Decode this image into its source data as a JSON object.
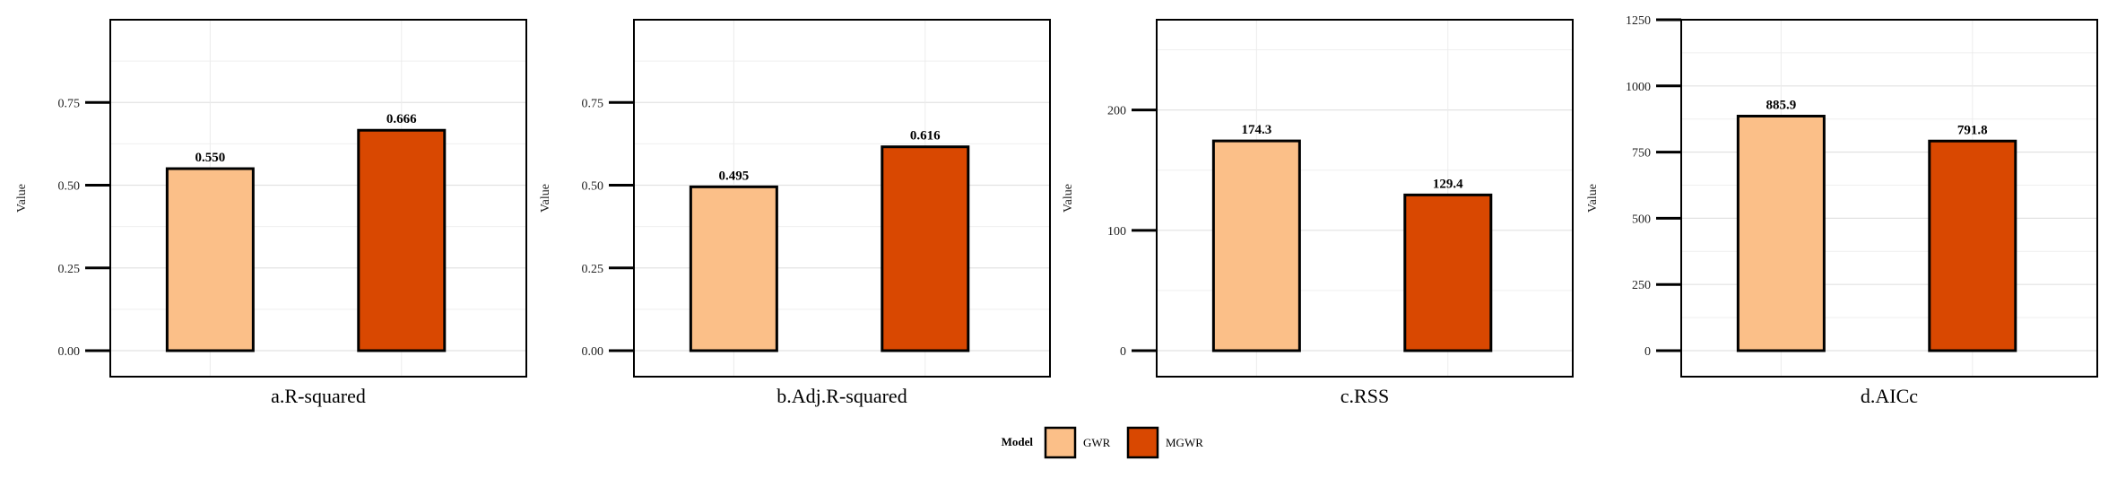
{
  "chart_data": [
    {
      "type": "bar",
      "title": "a.R-squared",
      "ylabel": "Value",
      "categories": [
        "GWR",
        "MGWR"
      ],
      "values": [
        0.55,
        0.666
      ],
      "value_labels": [
        "0.550",
        "0.666"
      ],
      "ylim": [
        0,
        1.0
      ],
      "yticks": [
        0.0,
        0.25,
        0.5,
        0.75
      ],
      "ytick_labels": [
        "0.00",
        "0.25",
        "0.50",
        "0.75"
      ],
      "grid": true
    },
    {
      "type": "bar",
      "title": "b.Adj.R-squared",
      "ylabel": "Value",
      "categories": [
        "GWR",
        "MGWR"
      ],
      "values": [
        0.495,
        0.616
      ],
      "value_labels": [
        "0.495",
        "0.616"
      ],
      "ylim": [
        0,
        1.0
      ],
      "yticks": [
        0.0,
        0.25,
        0.5,
        0.75
      ],
      "ytick_labels": [
        "0.00",
        "0.25",
        "0.50",
        "0.75"
      ],
      "grid": true
    },
    {
      "type": "bar",
      "title": "c.RSS",
      "ylabel": "Value",
      "categories": [
        "GWR",
        "MGWR"
      ],
      "values": [
        174.3,
        129.4
      ],
      "value_labels": [
        "174.3",
        "129.4"
      ],
      "ylim": [
        0,
        275
      ],
      "yticks": [
        0,
        100,
        200
      ],
      "ytick_labels": [
        "0",
        "100",
        "200"
      ],
      "grid": true
    },
    {
      "type": "bar",
      "title": "d.AICc",
      "ylabel": "Value",
      "categories": [
        "GWR",
        "MGWR"
      ],
      "values": [
        885.9,
        791.8
      ],
      "value_labels": [
        "885.9",
        "791.8"
      ],
      "ylim": [
        0,
        1250
      ],
      "yticks": [
        0,
        250,
        500,
        750,
        1000,
        1250
      ],
      "ytick_labels": [
        "0",
        "250",
        "500",
        "750",
        "1000",
        "1250"
      ],
      "grid": true
    }
  ],
  "legend": {
    "title": "Model",
    "placement": "bottom-center",
    "items": [
      {
        "label": "GWR",
        "color": "#FBBF88"
      },
      {
        "label": "MGWR",
        "color": "#D94801"
      }
    ]
  }
}
